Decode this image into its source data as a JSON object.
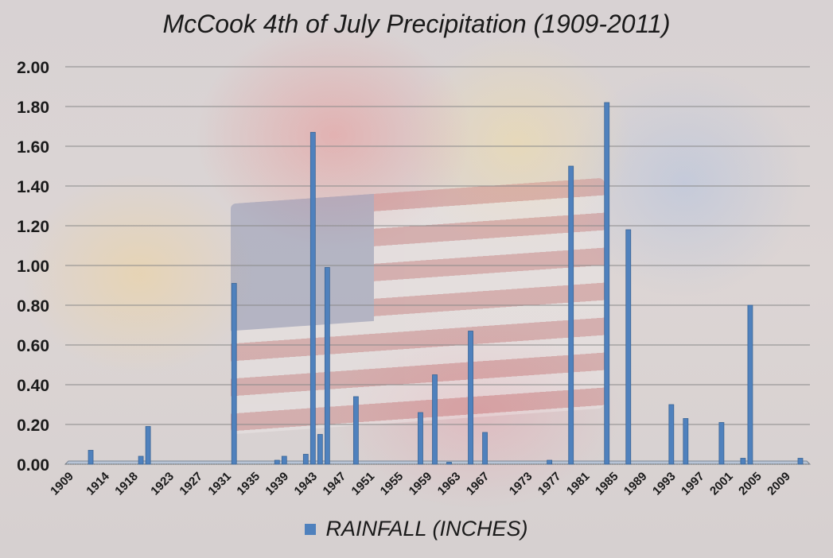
{
  "chart_data": {
    "type": "bar",
    "title": "McCook 4th of July Precipitation (1909-2011)",
    "xlabel": "",
    "ylabel": "",
    "ylim": [
      0,
      2.0
    ],
    "yticks": [
      "0.00",
      "0.20",
      "0.40",
      "0.60",
      "0.80",
      "1.00",
      "1.20",
      "1.40",
      "1.60",
      "1.80",
      "2.00"
    ],
    "xticks": [
      "1909",
      "1914",
      "1918",
      "1923",
      "1927",
      "1931",
      "1935",
      "1939",
      "1943",
      "1947",
      "1951",
      "1955",
      "1959",
      "1963",
      "1967",
      "1973",
      "1977",
      "1981",
      "1985",
      "1989",
      "1993",
      "1997",
      "2001",
      "2005",
      "2009"
    ],
    "grid": true,
    "legend_position": "bottom",
    "series": [
      {
        "name": "RAINFALL (INCHES)",
        "color": "#4f81bd",
        "points": [
          {
            "x": 1912,
            "y": 0.07
          },
          {
            "x": 1919,
            "y": 0.04
          },
          {
            "x": 1920,
            "y": 0.19
          },
          {
            "x": 1932,
            "y": 0.91
          },
          {
            "x": 1938,
            "y": 0.02
          },
          {
            "x": 1939,
            "y": 0.04
          },
          {
            "x": 1942,
            "y": 0.05
          },
          {
            "x": 1943,
            "y": 1.67
          },
          {
            "x": 1944,
            "y": 0.15
          },
          {
            "x": 1945,
            "y": 0.99
          },
          {
            "x": 1949,
            "y": 0.34
          },
          {
            "x": 1958,
            "y": 0.26
          },
          {
            "x": 1960,
            "y": 0.45
          },
          {
            "x": 1962,
            "y": 0.01
          },
          {
            "x": 1965,
            "y": 0.67
          },
          {
            "x": 1967,
            "y": 0.16
          },
          {
            "x": 1976,
            "y": 0.02
          },
          {
            "x": 1979,
            "y": 1.5
          },
          {
            "x": 1984,
            "y": 1.82
          },
          {
            "x": 1987,
            "y": 1.18
          },
          {
            "x": 1993,
            "y": 0.3
          },
          {
            "x": 1995,
            "y": 0.23
          },
          {
            "x": 2000,
            "y": 0.21
          },
          {
            "x": 2003,
            "y": 0.03
          },
          {
            "x": 2004,
            "y": 0.8
          },
          {
            "x": 2011,
            "y": 0.03
          }
        ]
      }
    ]
  },
  "colors": {
    "bar": "#4f81bd",
    "bar_edge": "#3b6595",
    "grid": "#8a8a8a",
    "axis_text": "#1a1a1a"
  }
}
